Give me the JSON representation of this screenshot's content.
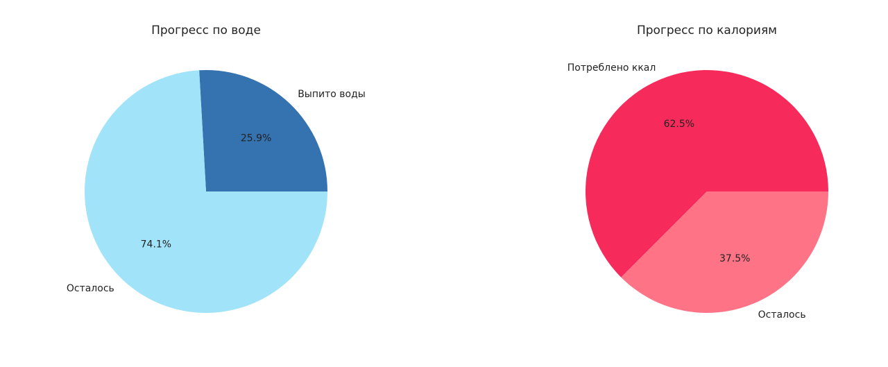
{
  "chart_data": [
    {
      "type": "pie",
      "title": "Прогресс по воде",
      "slices": [
        {
          "label": "Выпито воды",
          "value": 25.9,
          "pct_label": "25.9%",
          "color": "#3572b0"
        },
        {
          "label": "Осталось",
          "value": 74.1,
          "pct_label": "74.1%",
          "color": "#a1e3f8"
        }
      ],
      "start_angle_deg": 0,
      "direction": "counterclockwise"
    },
    {
      "type": "pie",
      "title": "Прогресс по калориям",
      "slices": [
        {
          "label": "Потреблено ккал",
          "value": 62.5,
          "pct_label": "62.5%",
          "color": "#f72b5b"
        },
        {
          "label": "Осталось",
          "value": 37.5,
          "pct_label": "37.5%",
          "color": "#ff7387"
        }
      ],
      "start_angle_deg": 0,
      "direction": "counterclockwise"
    }
  ]
}
